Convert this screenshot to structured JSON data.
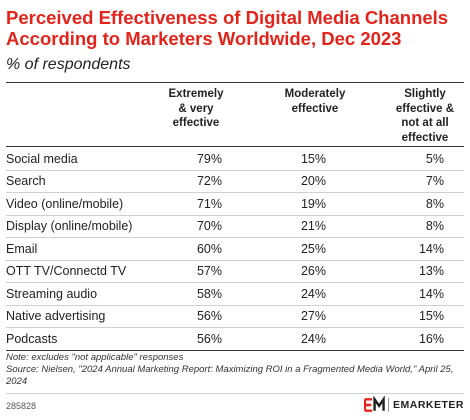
{
  "chart_data": {
    "type": "table",
    "title": "Perceived Effectiveness of Digital Media Channels According to Marketers Worldwide, Dec 2023",
    "subtitle": "% of respondents",
    "columns": [
      [
        "Extremely",
        "& very",
        "effective"
      ],
      [
        "Moderately",
        "effective"
      ],
      [
        "Slightly",
        "effective &",
        "not at all",
        "effective"
      ]
    ],
    "rows": [
      {
        "label": "Social media",
        "values": [
          "79%",
          "15%",
          "5%"
        ]
      },
      {
        "label": "Search",
        "values": [
          "72%",
          "20%",
          "7%"
        ]
      },
      {
        "label": "Video (online/mobile)",
        "values": [
          "71%",
          "19%",
          "8%"
        ]
      },
      {
        "label": "Display (online/mobile)",
        "values": [
          "70%",
          "21%",
          "8%"
        ]
      },
      {
        "label": "Email",
        "values": [
          "60%",
          "25%",
          "14%"
        ]
      },
      {
        "label": "OTT TV/Connectd TV",
        "values": [
          "57%",
          "26%",
          "13%"
        ]
      },
      {
        "label": "Streaming audio",
        "values": [
          "58%",
          "24%",
          "14%"
        ]
      },
      {
        "label": "Native advertising",
        "values": [
          "56%",
          "27%",
          "15%"
        ]
      },
      {
        "label": "Podcasts",
        "values": [
          "56%",
          "24%",
          "16%"
        ]
      }
    ]
  },
  "notes": {
    "note": "Note: excludes \"not applicable\" responses",
    "source": "Source: Nielsen, \"2024 Annual Marketing Report: Maximizing ROI in a Fragmented Media World,\" April 25, 2024"
  },
  "chart_id": "285828",
  "brand": {
    "name": "EMARKETER",
    "icon": "em-logo-icon",
    "accent_color": "#e2241b"
  }
}
